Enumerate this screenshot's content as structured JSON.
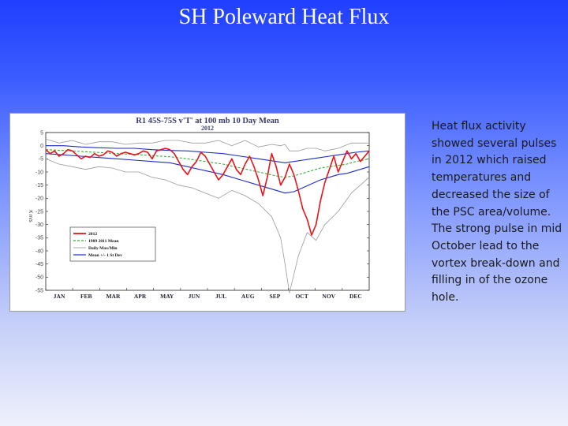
{
  "slide": {
    "title": "SH Poleward Heat Flux",
    "description": "Heat flux activity showed several pulses in 2012 which raised temperatures and decreased the size of the PSC area/volume. The strong pulse in mid October lead to the vortex break-down and filling in of the ozone hole."
  },
  "chart_data": {
    "type": "line",
    "title": "R1 45S-75S v'T' at 100 mb 10 Day Mean",
    "subtitle": "2012",
    "ylabel": "K m/s",
    "ylim": [
      -55,
      5
    ],
    "yticks": [
      5,
      0,
      -5,
      -10,
      -15,
      -20,
      -25,
      -30,
      -35,
      -40,
      -45,
      -50,
      -55
    ],
    "categories": [
      "JAN",
      "FEB",
      "MAR",
      "APR",
      "MAY",
      "JUN",
      "JUL",
      "AUG",
      "SEP",
      "OCT",
      "NOV",
      "DEC"
    ],
    "grid": false,
    "legend_position": "bottom-left",
    "colors": {
      "series_2012": "#e8141a",
      "mean": "#3aa83a",
      "maxmin": "#9a9a9a",
      "stdev": "#1c2ec8"
    },
    "series": [
      {
        "name": "2012",
        "x": [
          0,
          5,
          10,
          15,
          20,
          25,
          30,
          35,
          40,
          45,
          50,
          55,
          60,
          65,
          70,
          75,
          80,
          85,
          90,
          95,
          100,
          105,
          110,
          115,
          120,
          125,
          130,
          135,
          140,
          145,
          150,
          155,
          160,
          165,
          170,
          175,
          180,
          185,
          190,
          195,
          200,
          205,
          210,
          215,
          220,
          225,
          230,
          235,
          240,
          245,
          250,
          255,
          260,
          265,
          270,
          275,
          280,
          285,
          290,
          295,
          300,
          305,
          310,
          315,
          320,
          325,
          330,
          335,
          340,
          345,
          350,
          355,
          360,
          365
        ],
        "y": [
          -1.5,
          -3,
          -2,
          -4,
          -3,
          -1.5,
          -2,
          -3.5,
          -5,
          -4,
          -4.5,
          -3,
          -4,
          -3.5,
          -2,
          -2.5,
          -4,
          -3,
          -2.5,
          -3,
          -3.5,
          -3,
          -2,
          -2.5,
          -5,
          -2,
          -1.5,
          -1,
          -1.5,
          -3,
          -6,
          -9,
          -11,
          -8,
          -6,
          -2.5,
          -4,
          -7,
          -10,
          -13,
          -11,
          -8,
          -5,
          -9,
          -11,
          -7,
          -4,
          -8,
          -13,
          -19,
          -12,
          -3,
          -8,
          -15,
          -12,
          -7,
          -11,
          -17,
          -24,
          -28,
          -34,
          -30,
          -21,
          -14,
          -9,
          -4,
          -10,
          -6,
          -2,
          -5,
          -3,
          -6,
          -4,
          -2
        ]
      },
      {
        "name": "1989 2011 Mean",
        "x": [
          0,
          20,
          40,
          60,
          80,
          100,
          120,
          140,
          160,
          180,
          200,
          220,
          240,
          260,
          270,
          280,
          290,
          300,
          310,
          320,
          330,
          340,
          350,
          365
        ],
        "y": [
          -1.5,
          -1.8,
          -2.2,
          -2.6,
          -3,
          -3.3,
          -3.8,
          -4.2,
          -5,
          -6,
          -7,
          -8.5,
          -10,
          -11.5,
          -12,
          -11.5,
          -10.5,
          -9.5,
          -8.5,
          -8,
          -7.5,
          -7,
          -6,
          -5
        ]
      },
      {
        "name": "Daily Max/Min",
        "x": [
          0,
          15,
          30,
          45,
          60,
          75,
          90,
          105,
          120,
          135,
          150,
          165,
          180,
          195,
          210,
          225,
          240,
          255,
          265,
          270,
          275,
          285,
          295,
          305,
          315,
          330,
          345,
          365
        ],
        "y": [
          2.5,
          1,
          2,
          0.5,
          1.5,
          1.5,
          0.5,
          1,
          1,
          2,
          2,
          1,
          1,
          2,
          0,
          2,
          -0.5,
          0.5,
          0,
          0.5,
          -2,
          -2,
          -1,
          -1,
          -2,
          -1,
          1,
          1
        ],
        "y2": [
          -5,
          -7,
          -8,
          -9,
          -8,
          -8.5,
          -10,
          -10,
          -12,
          -13,
          -15,
          -16,
          -18,
          -20,
          -17,
          -19,
          -22,
          -27,
          -35,
          -45,
          -56,
          -42,
          -33,
          -36,
          -30,
          -25,
          -18,
          -12
        ]
      },
      {
        "name": "Mean +/- 1 St Dev",
        "x": [
          0,
          20,
          40,
          60,
          80,
          100,
          120,
          140,
          160,
          180,
          200,
          220,
          240,
          260,
          270,
          280,
          290,
          300,
          310,
          320,
          330,
          340,
          350,
          365
        ],
        "y": [
          0,
          0,
          -0.5,
          -0.8,
          -1,
          -1,
          -1.5,
          -1.8,
          -2,
          -2.5,
          -3,
          -4,
          -5,
          -6,
          -6.5,
          -6,
          -5.5,
          -5,
          -4.5,
          -4,
          -3.5,
          -3,
          -2.5,
          -2
        ],
        "y2": [
          -3,
          -3.5,
          -4,
          -4.5,
          -5,
          -5.5,
          -6,
          -6.5,
          -8,
          -9.5,
          -11,
          -13,
          -15,
          -17,
          -18,
          -17.5,
          -16,
          -14.5,
          -13,
          -12,
          -11,
          -10.5,
          -9.5,
          -8
        ]
      }
    ]
  }
}
